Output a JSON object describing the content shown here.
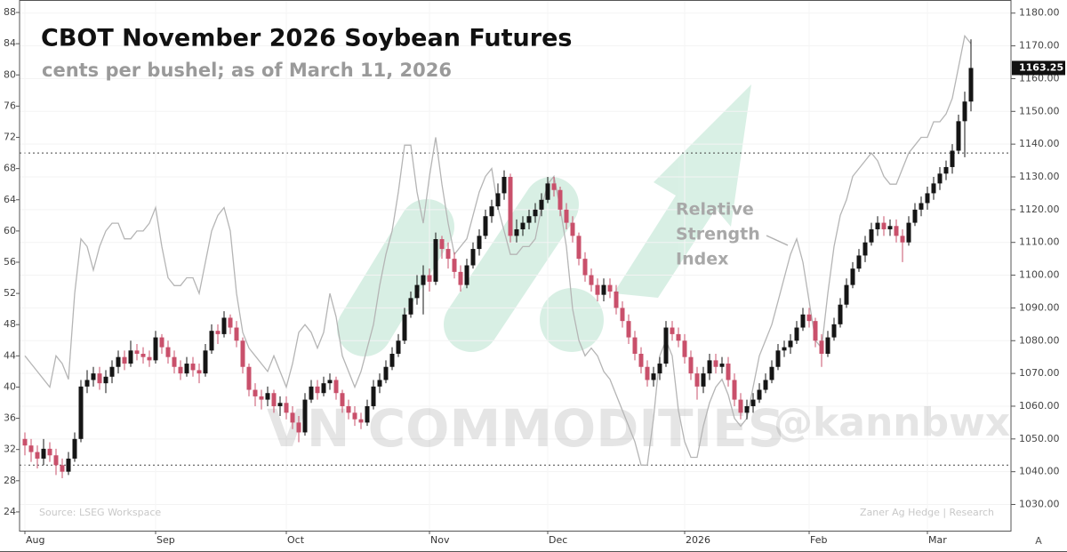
{
  "chart_data": {
    "type": "candlestick",
    "title": "CBOT November 2026 Soybean Futures",
    "subtitle": "cents per bushel; as of March 11, 2026",
    "annotation": [
      "Relative",
      "Strength",
      "Index"
    ],
    "source": "Source: LSEG Workspace",
    "credit": "Zaner Ag Hedge | Research",
    "watermark": [
      "VN COMMODITIES",
      "@kannbwx"
    ],
    "corner_icon": "A",
    "categories": [
      "Aug",
      null,
      null,
      null,
      null,
      null,
      null,
      null,
      null,
      null,
      null,
      null,
      null,
      null,
      null,
      null,
      null,
      null,
      null,
      null,
      null,
      "Sep",
      null,
      null,
      null,
      null,
      null,
      null,
      null,
      null,
      null,
      null,
      null,
      null,
      null,
      null,
      null,
      null,
      null,
      null,
      null,
      null,
      "Oct",
      null,
      null,
      null,
      null,
      null,
      null,
      null,
      null,
      null,
      null,
      null,
      null,
      null,
      null,
      null,
      null,
      null,
      null,
      null,
      null,
      null,
      null,
      "Nov",
      null,
      null,
      null,
      null,
      null,
      null,
      null,
      null,
      null,
      null,
      null,
      null,
      null,
      null,
      null,
      null,
      null,
      null,
      "Dec",
      null,
      null,
      null,
      null,
      null,
      null,
      null,
      null,
      null,
      null,
      null,
      null,
      null,
      null,
      null,
      null,
      null,
      null,
      null,
      null,
      null,
      "2026",
      null,
      null,
      null,
      null,
      null,
      null,
      null,
      null,
      null,
      null,
      null,
      null,
      null,
      null,
      null,
      null,
      null,
      null,
      null,
      "Feb",
      null,
      null,
      null,
      null,
      null,
      null,
      null,
      null,
      null,
      null,
      null,
      null,
      null,
      null,
      null,
      null,
      null,
      null,
      "Mar",
      null,
      null,
      null,
      null,
      null,
      null,
      null
    ],
    "open": [
      1050,
      1048,
      1046,
      1044,
      1047,
      1045,
      1042,
      1040,
      1044,
      1050,
      1066,
      1068,
      1070,
      1067,
      1069,
      1072,
      1075,
      1073,
      1077,
      1076,
      1075,
      1074,
      1081,
      1078,
      1075,
      1072,
      1070,
      1073,
      1071,
      1070,
      1077,
      1083,
      1082,
      1087,
      1084,
      1080,
      1072,
      1065,
      1063,
      1062,
      1064,
      1060,
      1061,
      1058,
      1055,
      1052,
      1062,
      1066,
      1064,
      1067,
      1068,
      1064,
      1060,
      1058,
      1056,
      1055,
      1060,
      1066,
      1068,
      1072,
      1076,
      1080,
      1088,
      1093,
      1097,
      1100,
      1098,
      1111,
      1108,
      1105,
      1101,
      1097,
      1103,
      1108,
      1112,
      1118,
      1121,
      1125,
      1130,
      1112,
      1114,
      1116,
      1118,
      1120,
      1123,
      1128,
      1126,
      1120,
      1116,
      1112,
      1105,
      1100,
      1097,
      1094,
      1097,
      1095,
      1090,
      1086,
      1081,
      1076,
      1072,
      1068,
      1070,
      1073,
      1084,
      1082,
      1080,
      1075,
      1070,
      1066,
      1070,
      1074,
      1072,
      1073,
      1068,
      1062,
      1058,
      1060,
      1062,
      1065,
      1068,
      1072,
      1077,
      1078,
      1080,
      1084,
      1088,
      1086,
      1080,
      1076,
      1081,
      1085,
      1091,
      1097,
      1102,
      1106,
      1110,
      1114,
      1116,
      1114,
      1115,
      1112,
      1110,
      1116,
      1120,
      1122,
      1125,
      1128,
      1131,
      1133,
      1138,
      1147,
      1153
    ],
    "high": [
      1052,
      1050,
      1048,
      1050,
      1049,
      1047,
      1044,
      1046,
      1052,
      1068,
      1071,
      1072,
      1072,
      1071,
      1074,
      1077,
      1077,
      1080,
      1079,
      1078,
      1077,
      1083,
      1082,
      1080,
      1077,
      1074,
      1075,
      1075,
      1073,
      1079,
      1085,
      1085,
      1089,
      1088,
      1086,
      1081,
      1073,
      1067,
      1065,
      1066,
      1065,
      1063,
      1063,
      1060,
      1057,
      1064,
      1068,
      1068,
      1069,
      1070,
      1069,
      1065,
      1062,
      1060,
      1058,
      1062,
      1068,
      1070,
      1074,
      1078,
      1082,
      1090,
      1095,
      1100,
      1103,
      1102,
      1113,
      1112,
      1110,
      1107,
      1103,
      1105,
      1110,
      1114,
      1120,
      1123,
      1128,
      1132,
      1131,
      1117,
      1118,
      1120,
      1122,
      1125,
      1130,
      1130,
      1127,
      1122,
      1118,
      1113,
      1107,
      1102,
      1099,
      1099,
      1099,
      1097,
      1092,
      1088,
      1083,
      1078,
      1074,
      1072,
      1075,
      1086,
      1086,
      1084,
      1082,
      1077,
      1072,
      1072,
      1076,
      1076,
      1075,
      1075,
      1070,
      1064,
      1062,
      1064,
      1067,
      1070,
      1074,
      1079,
      1080,
      1082,
      1086,
      1090,
      1090,
      1087,
      1082,
      1083,
      1087,
      1093,
      1099,
      1104,
      1108,
      1112,
      1116,
      1118,
      1118,
      1117,
      1117,
      1114,
      1118,
      1122,
      1124,
      1127,
      1130,
      1133,
      1135,
      1140,
      1149,
      1156,
      1172
    ],
    "low": [
      1045,
      1043,
      1041,
      1042,
      1043,
      1039,
      1038,
      1039,
      1043,
      1049,
      1064,
      1066,
      1065,
      1064,
      1067,
      1070,
      1071,
      1072,
      1074,
      1073,
      1072,
      1073,
      1076,
      1073,
      1070,
      1068,
      1069,
      1069,
      1067,
      1069,
      1076,
      1079,
      1081,
      1082,
      1078,
      1070,
      1063,
      1060,
      1059,
      1060,
      1058,
      1057,
      1056,
      1053,
      1049,
      1051,
      1061,
      1062,
      1063,
      1065,
      1062,
      1058,
      1056,
      1054,
      1053,
      1054,
      1059,
      1064,
      1067,
      1071,
      1075,
      1079,
      1087,
      1091,
      1088,
      1095,
      1097,
      1105,
      1102,
      1099,
      1095,
      1096,
      1102,
      1106,
      1111,
      1116,
      1120,
      1123,
      1110,
      1110,
      1112,
      1114,
      1116,
      1118,
      1122,
      1124,
      1118,
      1114,
      1110,
      1103,
      1098,
      1095,
      1092,
      1092,
      1093,
      1088,
      1084,
      1079,
      1074,
      1070,
      1066,
      1066,
      1068,
      1072,
      1080,
      1078,
      1073,
      1068,
      1062,
      1064,
      1068,
      1070,
      1070,
      1066,
      1060,
      1056,
      1056,
      1058,
      1061,
      1064,
      1067,
      1071,
      1075,
      1076,
      1079,
      1083,
      1084,
      1078,
      1072,
      1075,
      1080,
      1084,
      1090,
      1096,
      1101,
      1104,
      1109,
      1112,
      1112,
      1112,
      1110,
      1104,
      1109,
      1115,
      1118,
      1120,
      1123,
      1126,
      1129,
      1131,
      1137,
      1136,
      1150
    ],
    "close": [
      1048,
      1046,
      1044,
      1047,
      1045,
      1042,
      1040,
      1044,
      1050,
      1066,
      1068,
      1070,
      1067,
      1069,
      1072,
      1075,
      1073,
      1077,
      1076,
      1075,
      1074,
      1081,
      1078,
      1075,
      1072,
      1070,
      1073,
      1071,
      1070,
      1077,
      1083,
      1082,
      1087,
      1084,
      1080,
      1072,
      1065,
      1063,
      1062,
      1064,
      1060,
      1061,
      1058,
      1055,
      1052,
      1062,
      1066,
      1064,
      1067,
      1068,
      1064,
      1060,
      1058,
      1056,
      1055,
      1060,
      1066,
      1068,
      1072,
      1076,
      1080,
      1088,
      1093,
      1097,
      1100,
      1098,
      1111,
      1108,
      1105,
      1101,
      1097,
      1103,
      1108,
      1112,
      1118,
      1121,
      1125,
      1130,
      1112,
      1114,
      1116,
      1118,
      1120,
      1123,
      1128,
      1126,
      1120,
      1116,
      1112,
      1105,
      1100,
      1097,
      1094,
      1097,
      1095,
      1090,
      1086,
      1081,
      1076,
      1072,
      1068,
      1070,
      1073,
      1084,
      1082,
      1080,
      1075,
      1070,
      1066,
      1070,
      1074,
      1072,
      1073,
      1068,
      1062,
      1058,
      1060,
      1062,
      1065,
      1068,
      1072,
      1077,
      1078,
      1080,
      1084,
      1088,
      1086,
      1080,
      1076,
      1081,
      1085,
      1091,
      1097,
      1102,
      1106,
      1110,
      1114,
      1116,
      1114,
      1115,
      1112,
      1110,
      1116,
      1120,
      1122,
      1125,
      1128,
      1131,
      1133,
      1138,
      1147,
      1153,
      1163.25
    ],
    "up_color": "#151515",
    "down_color": "#c9506b",
    "rsi": {
      "axis": "y2",
      "color": "#b5b5b5",
      "values": [
        44,
        43,
        42,
        41,
        40,
        44,
        43,
        41,
        52,
        59,
        58,
        55,
        58,
        60,
        61,
        61,
        59,
        59,
        60,
        60,
        61,
        63,
        58,
        54,
        53,
        53,
        54,
        54,
        52,
        56,
        60,
        62,
        63,
        60,
        52,
        47,
        45,
        44,
        43,
        42,
        44,
        42,
        40,
        43,
        47,
        48,
        47,
        45,
        47,
        52,
        49,
        44,
        42,
        40,
        42,
        45,
        48,
        53,
        57,
        60,
        65,
        71,
        71,
        65,
        61,
        67,
        72,
        66,
        61,
        57,
        58,
        59,
        62,
        65,
        67,
        68,
        63,
        60,
        57,
        57,
        58,
        58,
        59,
        63,
        66,
        67,
        63,
        58,
        50,
        46,
        44,
        45,
        44,
        42,
        41,
        39,
        37,
        35,
        33,
        30,
        30,
        36,
        44,
        46,
        44,
        37,
        33,
        31,
        31,
        35,
        38,
        40,
        41,
        39,
        36,
        35,
        36,
        40,
        44,
        46,
        48,
        51,
        54,
        57,
        59,
        56,
        51,
        46,
        45,
        52,
        58,
        62,
        64,
        67,
        68,
        69,
        70,
        69,
        67,
        66,
        66,
        68,
        70,
        71,
        72,
        72,
        74,
        74,
        75,
        77,
        81,
        85,
        84
      ]
    },
    "ylim": [
      1022,
      1184
    ],
    "yticks": [
      {
        "value": 1030,
        "label": "1030.00"
      },
      {
        "value": 1040,
        "label": "1040.00"
      },
      {
        "value": 1050,
        "label": "1050.00"
      },
      {
        "value": 1060,
        "label": "1060.00"
      },
      {
        "value": 1070,
        "label": "1070.00"
      },
      {
        "value": 1080,
        "label": "1080.00"
      },
      {
        "value": 1090,
        "label": "1090.00"
      },
      {
        "value": 1100,
        "label": "1100.00"
      },
      {
        "value": 1110,
        "label": "1110.00"
      },
      {
        "value": 1120,
        "label": "1120.00"
      },
      {
        "value": 1130,
        "label": "1130.00"
      },
      {
        "value": 1140,
        "label": "1140.00"
      },
      {
        "value": 1150,
        "label": "1150.00"
      },
      {
        "value": 1160,
        "label": "1160.00"
      },
      {
        "value": 1170,
        "label": "1170.00"
      },
      {
        "value": 1180,
        "label": "1180.00"
      }
    ],
    "last_price": 1163.25,
    "y2lim": [
      21.6,
      89.6
    ],
    "y2ticks": [
      24,
      28,
      32,
      36,
      40,
      44,
      48,
      52,
      56,
      60,
      64,
      68,
      72,
      76,
      80,
      84,
      88
    ],
    "y2_reference_lines": [
      30,
      70
    ],
    "grid": true
  }
}
